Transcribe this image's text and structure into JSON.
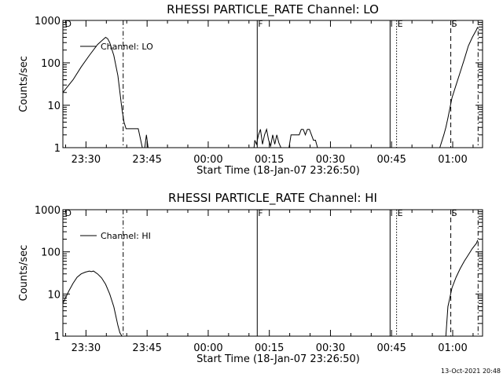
{
  "footer": {
    "timestamp": "13-Oct-2021 20:48"
  },
  "chart_data": [
    {
      "type": "line",
      "title": "RHESSI PARTICLE_RATE Channel: LO",
      "xlabel": "Start Time (18-Jan-07 23:26:50)",
      "ylabel": "Counts/sec",
      "yscale": "log",
      "ylim": [
        1,
        1000
      ],
      "xlim_minutes": [
        -2.5,
        100.5
      ],
      "ytick_labels": [
        "1",
        "10",
        "100",
        "1000"
      ],
      "xtick_labels": [
        "23:30",
        "23:45",
        "00:00",
        "00:15",
        "00:30",
        "00:45",
        "01:00"
      ],
      "legend": {
        "label": "Channel: LO",
        "position": "top-left"
      },
      "markers": [
        {
          "letter": "D",
          "minute": -2.2,
          "style": "none"
        },
        {
          "letter": "",
          "minute": 12.3,
          "style": "dash-dot"
        },
        {
          "letter": "F",
          "minute": 45.2,
          "style": "solid"
        },
        {
          "letter": "",
          "minute": 77.8,
          "style": "solid"
        },
        {
          "letter": "E",
          "minute": 79.4,
          "style": "dotted"
        },
        {
          "letter": "S",
          "minute": 92.7,
          "style": "dashed"
        },
        {
          "letter": "",
          "minute": 99.4,
          "style": "dash-dot"
        }
      ],
      "series": [
        {
          "name": "Channel: LO",
          "x": [
            -2.5,
            0,
            2,
            4,
            6,
            7,
            8,
            8.5,
            9,
            10,
            11,
            11.5,
            12,
            12.5,
            13,
            13.5,
            14,
            16,
            17,
            17.6,
            18,
            18.4,
            19,
            44.4,
            44.6,
            45,
            45.5,
            46,
            46.5,
            47,
            47.5,
            48,
            48.5,
            49,
            49.5,
            50,
            50.5,
            51,
            51.5,
            52,
            52.5,
            53,
            53.5,
            54,
            54.5,
            55,
            55.5,
            56,
            56.5,
            57,
            57.5,
            58,
            58.5,
            59,
            59.5,
            60,
            60.5,
            61,
            61.5,
            62,
            62.5,
            63,
            63.5,
            64,
            64.5,
            65,
            65.5,
            66,
            66.5,
            67,
            67.5,
            68,
            90,
            91,
            91.5,
            92,
            93,
            94,
            95,
            96,
            97,
            98,
            99,
            99.3
          ],
          "y": [
            20,
            40,
            80,
            150,
            270,
            330,
            400,
            370,
            300,
            150,
            50,
            20,
            8,
            4,
            2.8,
            2.8,
            2.8,
            2.8,
            1,
            1,
            2,
            1,
            1,
            1,
            1.5,
            1.2,
            2,
            2.7,
            1.2,
            2,
            2.7,
            1.5,
            1.1,
            2,
            1.2,
            2,
            1.3,
            1,
            1,
            1,
            1,
            1,
            2,
            2,
            2,
            2,
            2,
            2.7,
            2.7,
            2,
            2.7,
            2.7,
            2,
            1.5,
            1.5,
            1,
            1,
            1,
            1,
            1,
            1,
            1,
            1,
            1,
            1,
            1,
            1,
            1,
            1,
            1,
            1,
            1,
            1,
            2,
            3,
            5,
            15,
            30,
            60,
            120,
            250,
            400,
            600,
            700
          ]
        }
      ]
    },
    {
      "type": "line",
      "title": "RHESSI PARTICLE_RATE Channel: HI",
      "xlabel": "Start Time (18-Jan-07 23:26:50)",
      "ylabel": "Counts/sec",
      "yscale": "log",
      "ylim": [
        1,
        1000
      ],
      "xlim_minutes": [
        -2.5,
        100.5
      ],
      "ytick_labels": [
        "1",
        "10",
        "100",
        "1000"
      ],
      "xtick_labels": [
        "23:30",
        "23:45",
        "00:00",
        "00:15",
        "00:30",
        "00:45",
        "01:00"
      ],
      "legend": {
        "label": "Channel: HI",
        "position": "top-left"
      },
      "markers": [
        {
          "letter": "D",
          "minute": -2.2,
          "style": "none"
        },
        {
          "letter": "",
          "minute": 12.3,
          "style": "dash-dot"
        },
        {
          "letter": "F",
          "minute": 45.2,
          "style": "solid"
        },
        {
          "letter": "",
          "minute": 77.8,
          "style": "solid"
        },
        {
          "letter": "E",
          "minute": 79.4,
          "style": "dotted"
        },
        {
          "letter": "S",
          "minute": 92.7,
          "style": "dashed"
        },
        {
          "letter": "",
          "minute": 99.4,
          "style": "dash-dot"
        }
      ],
      "series": [
        {
          "name": "Channel: HI",
          "x": [
            -2.5,
            -1,
            0,
            1,
            2,
            3,
            4,
            4.5,
            5,
            6,
            7,
            8,
            9,
            10,
            10.5,
            11,
            11.5,
            12
          ],
          "y": [
            6,
            12,
            18,
            25,
            30,
            33,
            35,
            34,
            35,
            30,
            24,
            17,
            10,
            5,
            3,
            1.8,
            1.2,
            1
          ]
        },
        {
          "name": "",
          "x": [
            91.5,
            92,
            93,
            94,
            95,
            96,
            97,
            98,
            99,
            99.3
          ],
          "y": [
            1,
            5,
            14,
            25,
            40,
            60,
            85,
            120,
            160,
            190
          ]
        }
      ]
    }
  ]
}
